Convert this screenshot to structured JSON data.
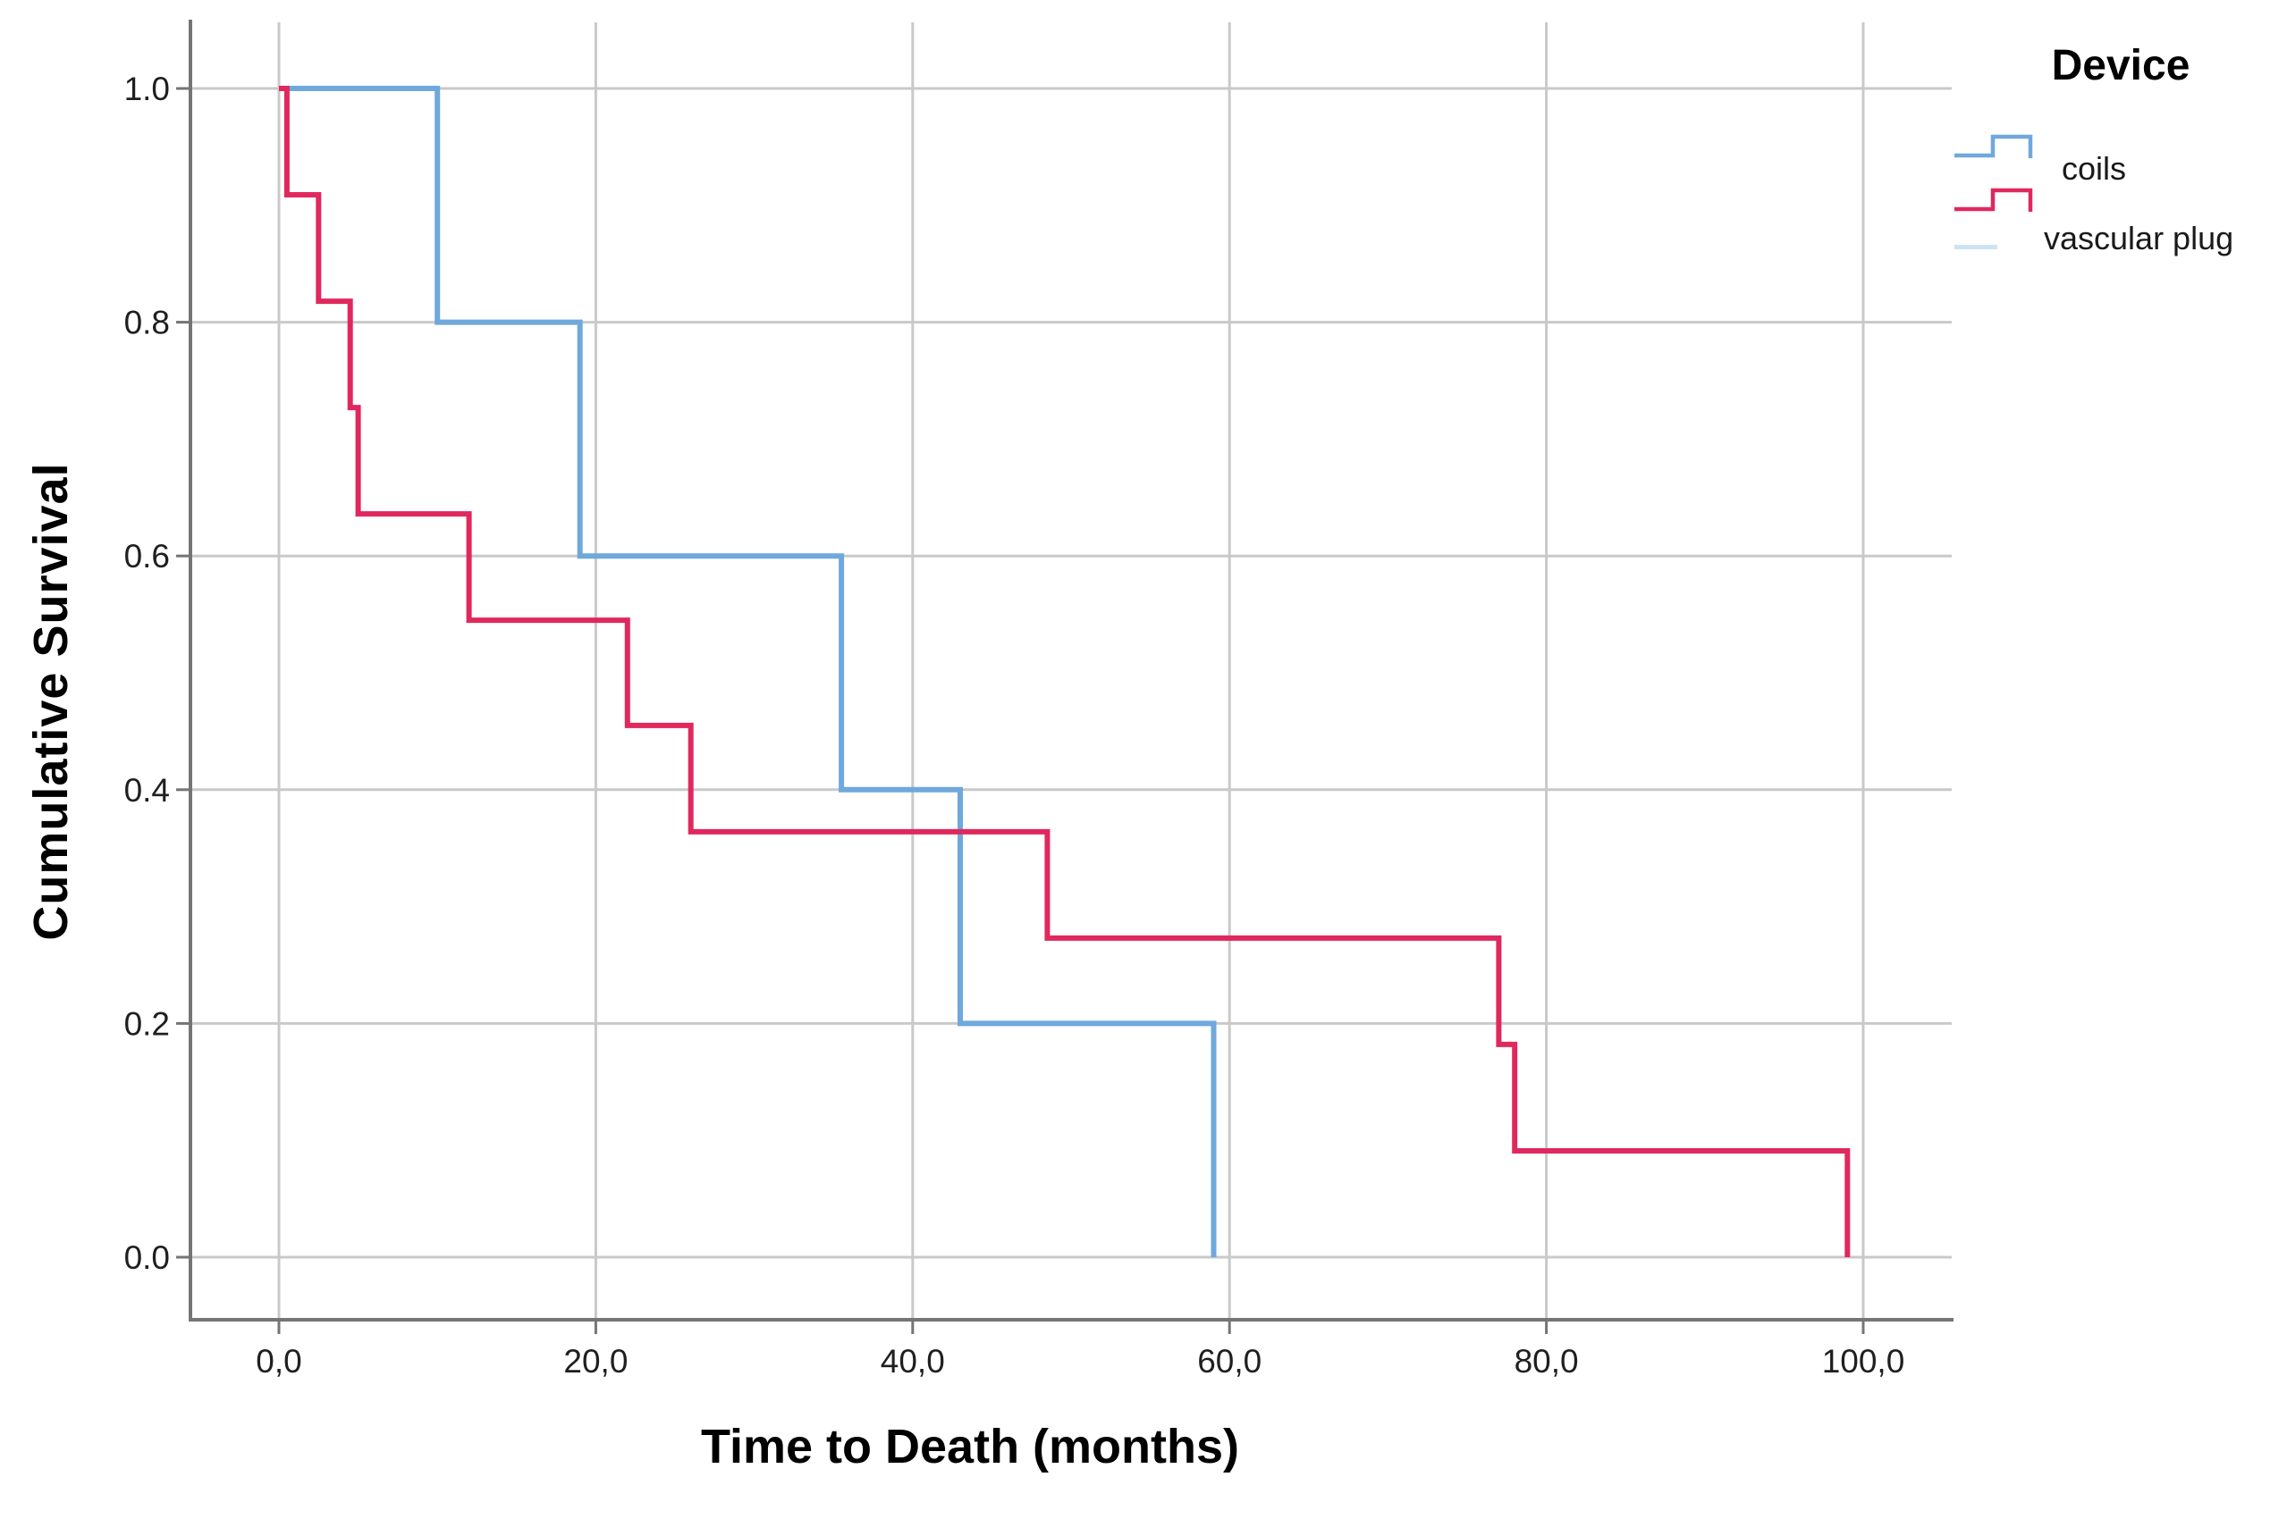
{
  "chart_data": {
    "type": "line",
    "subtype": "kaplan-meier-step",
    "title": "",
    "xlabel": "Time to Death (months)",
    "ylabel": "Cumulative Survival",
    "xlim": [
      0,
      100
    ],
    "ylim": [
      0.0,
      1.0
    ],
    "grid": true,
    "x_ticks": [
      {
        "value": 0,
        "label": "0,0"
      },
      {
        "value": 20,
        "label": "20,0"
      },
      {
        "value": 40,
        "label": "40,0"
      },
      {
        "value": 60,
        "label": "60,0"
      },
      {
        "value": 80,
        "label": "80,0"
      },
      {
        "value": 100,
        "label": "100,0"
      }
    ],
    "y_ticks": [
      {
        "value": 0.0,
        "label": "0.0"
      },
      {
        "value": 0.2,
        "label": "0.2"
      },
      {
        "value": 0.4,
        "label": "0.4"
      },
      {
        "value": 0.6,
        "label": "0.6"
      },
      {
        "value": 0.8,
        "label": "0.8"
      },
      {
        "value": 1.0,
        "label": "1.0"
      }
    ],
    "series": [
      {
        "name": "coils",
        "color": "#6FA8DC",
        "start": {
          "t": 0,
          "s": 1.0
        },
        "steps": [
          {
            "t": 10,
            "s": 0.8
          },
          {
            "t": 19,
            "s": 0.6
          },
          {
            "t": 35.5,
            "s": 0.4
          },
          {
            "t": 43,
            "s": 0.2
          },
          {
            "t": 59,
            "s": 0.0
          }
        ]
      },
      {
        "name": "vascular plug",
        "color": "#E0285E",
        "start": {
          "t": 0,
          "s": 1.0
        },
        "steps": [
          {
            "t": 0.5,
            "s": 0.909
          },
          {
            "t": 2.5,
            "s": 0.818
          },
          {
            "t": 4.5,
            "s": 0.727
          },
          {
            "t": 5,
            "s": 0.636
          },
          {
            "t": 12,
            "s": 0.545
          },
          {
            "t": 22,
            "s": 0.455
          },
          {
            "t": 26,
            "s": 0.364
          },
          {
            "t": 48.5,
            "s": 0.273
          },
          {
            "t": 77,
            "s": 0.182
          },
          {
            "t": 78,
            "s": 0.091
          },
          {
            "t": 99,
            "s": 0.0
          }
        ]
      }
    ],
    "legend": {
      "title": "Device",
      "position": "top-right-outside",
      "items": [
        {
          "label": "coils",
          "color": "#6FA8DC"
        },
        {
          "label": "vascular plug",
          "color": "#E0285E"
        }
      ]
    },
    "colors": {
      "grid": "#C9C9C9",
      "axis": "#757575",
      "tick_text": "#1f1f1f"
    }
  }
}
